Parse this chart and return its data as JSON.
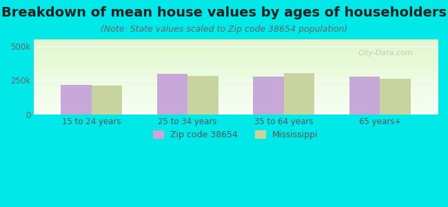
{
  "title": "Breakdown of mean house values by ages of householders",
  "subtitle": "(Note: State values scaled to Zip code 38654 population)",
  "categories": [
    "15 to 24 years",
    "25 to 34 years",
    "35 to 64 years",
    "65 years+"
  ],
  "zip_values": [
    215000,
    295000,
    275000,
    275000
  ],
  "ms_values": [
    210000,
    282000,
    300000,
    262000
  ],
  "zip_color": "#c8a8d8",
  "ms_color": "#c8d4a0",
  "bg_color": "#00e8e8",
  "ylim": [
    0,
    550000
  ],
  "yticks": [
    0,
    250000,
    500000
  ],
  "ytick_labels": [
    "0",
    "250k",
    "500k"
  ],
  "legend_zip": "Zip code 38654",
  "legend_ms": "Mississippi",
  "title_fontsize": 14,
  "subtitle_fontsize": 9,
  "bar_width": 0.32,
  "watermark": "City-Data.com"
}
